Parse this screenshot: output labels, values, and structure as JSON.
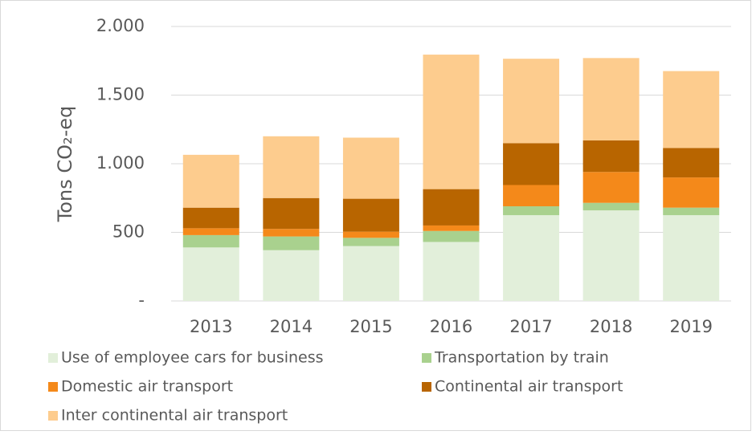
{
  "chart_data": {
    "type": "stacked_bar",
    "y_label": "Tons CO₂-eq",
    "categories": [
      "2013",
      "2014",
      "2015",
      "2016",
      "2017",
      "2018",
      "2019"
    ],
    "series": [
      {
        "name": "Use of employee cars for business",
        "color": "#e2efda",
        "values": [
          390,
          370,
          400,
          430,
          625,
          660,
          625
        ]
      },
      {
        "name": "Transportation by train",
        "color": "#a9d18e",
        "values": [
          90,
          100,
          60,
          80,
          65,
          55,
          55
        ]
      },
      {
        "name": "Domestic air transport",
        "color": "#f4891a",
        "values": [
          50,
          55,
          45,
          40,
          155,
          225,
          220
        ]
      },
      {
        "name": "Continental air transport",
        "color": "#b86500",
        "values": [
          150,
          225,
          240,
          265,
          305,
          230,
          215
        ]
      },
      {
        "name": "Inter continental air transport",
        "color": "#fdcc8e",
        "values": [
          385,
          450,
          445,
          980,
          615,
          600,
          560
        ]
      }
    ],
    "ylim": [
      0,
      2000
    ],
    "yticks": [
      {
        "value": 0,
        "label": "-"
      },
      500,
      {
        "value": 1000,
        "label": "1.000"
      },
      {
        "value": 1500,
        "label": "1.500"
      },
      {
        "value": 2000,
        "label": "2.000"
      }
    ],
    "grid": true
  }
}
